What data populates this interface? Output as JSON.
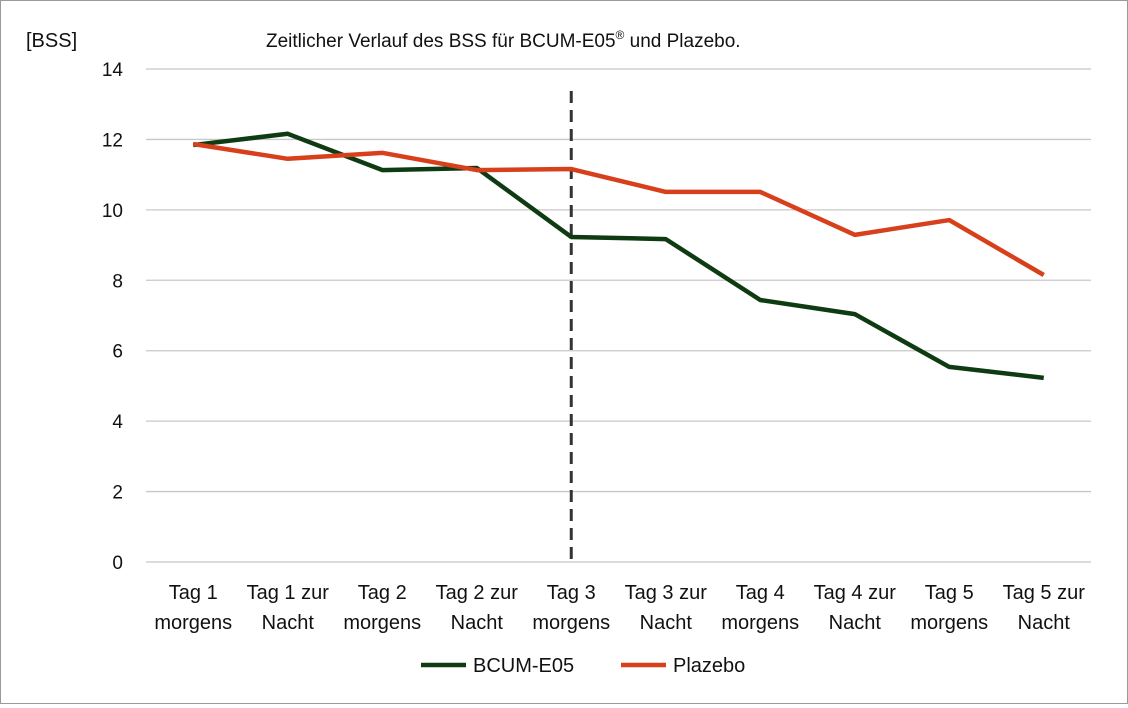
{
  "chart_data": {
    "type": "line",
    "title": "Zeitlicher Verlauf des BSS für BCUM-E05",
    "title_superscript": "®",
    "title_suffix": " und Plazebo.",
    "ylabel": "[BSS]",
    "xlabel": "",
    "ylim": [
      0,
      14
    ],
    "yticks": [
      0,
      2,
      4,
      6,
      8,
      10,
      12,
      14
    ],
    "grid": "horizontal",
    "legend_position": "bottom",
    "categories": [
      [
        "Tag 1",
        "morgens"
      ],
      [
        "Tag 1 zur",
        "Nacht"
      ],
      [
        "Tag 2",
        "morgens"
      ],
      [
        "Tag 2 zur",
        "Nacht"
      ],
      [
        "Tag 3",
        "morgens"
      ],
      [
        "Tag 3 zur",
        "Nacht"
      ],
      [
        "Tag 4",
        "morgens"
      ],
      [
        "Tag 4 zur",
        "Nacht"
      ],
      [
        "Tag 5",
        "morgens"
      ],
      [
        "Tag 5 zur",
        "Nacht"
      ]
    ],
    "vertical_marker_category_index": 4,
    "series": [
      {
        "name": "BCUM-E05",
        "color": "#0e3b12",
        "values": [
          11.84,
          12.16,
          11.13,
          11.19,
          9.23,
          9.17,
          7.44,
          7.04,
          5.54,
          5.23
        ]
      },
      {
        "name": "Plazebo",
        "color": "#d8401c",
        "values": [
          11.87,
          11.45,
          11.62,
          11.13,
          11.16,
          10.51,
          10.51,
          9.29,
          9.71,
          8.15
        ]
      }
    ]
  }
}
